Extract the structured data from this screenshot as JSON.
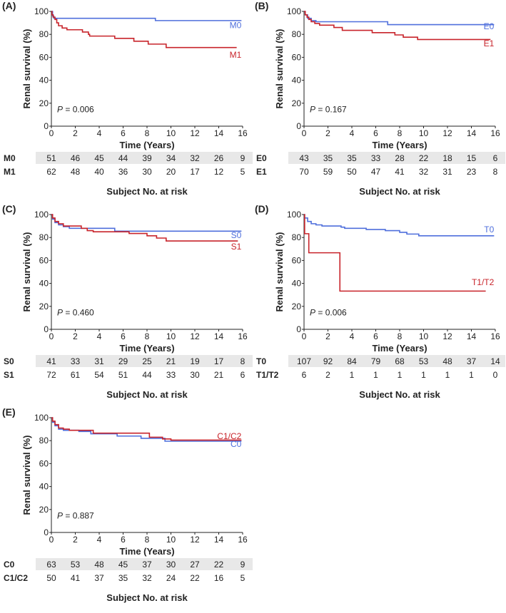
{
  "colors": {
    "blue": "#4f6fdc",
    "red": "#c8242b",
    "table_band": "#e8e8e8"
  },
  "chart_data": [
    {
      "type": "line",
      "panel_label": "(A)",
      "xlabel": "Time (Years)",
      "ylabel": "Renal survival (%)",
      "xlim": [
        0,
        16
      ],
      "ylim": [
        0,
        100
      ],
      "xticks": [
        0,
        2,
        4,
        6,
        8,
        10,
        12,
        14,
        16
      ],
      "yticks": [
        0,
        20,
        40,
        60,
        80,
        100
      ],
      "p_label": "P",
      "p_value": "= 0.006",
      "risk_title": "Subject No. at risk",
      "series": [
        {
          "name": "M0",
          "color": "blue",
          "steps": [
            [
              0,
              100
            ],
            [
              0.1,
              96
            ],
            [
              0.2,
              94
            ],
            [
              8.7,
              92
            ],
            [
              15.9,
              92
            ]
          ],
          "at_risk": [
            "51",
            "46",
            "45",
            "44",
            "39",
            "34",
            "32",
            "26",
            "9"
          ]
        },
        {
          "name": "M1",
          "color": "red",
          "steps": [
            [
              0,
              100
            ],
            [
              0.05,
              97
            ],
            [
              0.15,
              95
            ],
            [
              0.3,
              93
            ],
            [
              0.45,
              90
            ],
            [
              0.6,
              87.5
            ],
            [
              0.9,
              85.5
            ],
            [
              1.3,
              84
            ],
            [
              2.6,
              82
            ],
            [
              3.1,
              80
            ],
            [
              3.2,
              78.5
            ],
            [
              5.3,
              76.5
            ],
            [
              6.9,
              74
            ],
            [
              8.1,
              71.5
            ],
            [
              9.6,
              68.5
            ],
            [
              15.5,
              68.5
            ]
          ],
          "at_risk": [
            "62",
            "48",
            "40",
            "36",
            "30",
            "20",
            "17",
            "12",
            "5"
          ]
        }
      ]
    },
    {
      "type": "line",
      "panel_label": "(B)",
      "xlabel": "Time (Years)",
      "ylabel": "Renal survival (%)",
      "xlim": [
        0,
        16
      ],
      "ylim": [
        0,
        100
      ],
      "xticks": [
        0,
        2,
        4,
        6,
        8,
        10,
        12,
        14,
        16
      ],
      "yticks": [
        0,
        20,
        40,
        60,
        80,
        100
      ],
      "p_label": "P",
      "p_value": "= 0.167",
      "risk_title": "Subject No. at risk",
      "series": [
        {
          "name": "E0",
          "color": "blue",
          "steps": [
            [
              0,
              100
            ],
            [
              0.1,
              97
            ],
            [
              0.3,
              94
            ],
            [
              0.6,
              92
            ],
            [
              1,
              91
            ],
            [
              7,
              88.5
            ],
            [
              15.9,
              88.5
            ]
          ],
          "at_risk": [
            "43",
            "35",
            "35",
            "33",
            "28",
            "22",
            "18",
            "15",
            "6"
          ]
        },
        {
          "name": "E1",
          "color": "red",
          "steps": [
            [
              0,
              100
            ],
            [
              0.1,
              97
            ],
            [
              0.25,
              95
            ],
            [
              0.4,
              93
            ],
            [
              0.6,
              91
            ],
            [
              0.9,
              89.5
            ],
            [
              1.3,
              88
            ],
            [
              2.5,
              86
            ],
            [
              3.2,
              83.5
            ],
            [
              5.7,
              81.5
            ],
            [
              7.6,
              79.5
            ],
            [
              8.3,
              77.5
            ],
            [
              9.5,
              75.5
            ],
            [
              15.6,
              75.5
            ]
          ],
          "at_risk": [
            "70",
            "59",
            "50",
            "47",
            "41",
            "32",
            "31",
            "23",
            "8"
          ]
        }
      ]
    },
    {
      "type": "line",
      "panel_label": "(C)",
      "xlabel": "Time (Years)",
      "ylabel": "Renal survival (%)",
      "xlim": [
        0,
        16
      ],
      "ylim": [
        0,
        100
      ],
      "xticks": [
        0,
        2,
        4,
        6,
        8,
        10,
        12,
        14,
        16
      ],
      "yticks": [
        0,
        20,
        40,
        60,
        80,
        100
      ],
      "p_label": "P",
      "p_value": "= 0.460",
      "risk_title": "Subject No. at risk",
      "series": [
        {
          "name": "S0",
          "color": "blue",
          "steps": [
            [
              0,
              100
            ],
            [
              0.1,
              96
            ],
            [
              0.3,
              93
            ],
            [
              0.6,
              91
            ],
            [
              1,
              89.5
            ],
            [
              1.5,
              88
            ],
            [
              5.3,
              85.5
            ],
            [
              15.9,
              85.5
            ]
          ],
          "at_risk": [
            "41",
            "33",
            "31",
            "29",
            "25",
            "21",
            "19",
            "17",
            "8"
          ]
        },
        {
          "name": "S1",
          "color": "red",
          "steps": [
            [
              0,
              100
            ],
            [
              0.1,
              97
            ],
            [
              0.3,
              94
            ],
            [
              0.6,
              92
            ],
            [
              1,
              90
            ],
            [
              2.5,
              88
            ],
            [
              3,
              86
            ],
            [
              3.5,
              85
            ],
            [
              6.5,
              83.5
            ],
            [
              8,
              81.5
            ],
            [
              8.8,
              79.5
            ],
            [
              9.6,
              77
            ],
            [
              15.6,
              77
            ]
          ],
          "at_risk": [
            "72",
            "61",
            "54",
            "51",
            "44",
            "33",
            "30",
            "21",
            "6"
          ]
        }
      ]
    },
    {
      "type": "line",
      "panel_label": "(D)",
      "xlabel": "Time (Years)",
      "ylabel": "Renal survival (%)",
      "xlim": [
        0,
        16
      ],
      "ylim": [
        0,
        100
      ],
      "xticks": [
        0,
        2,
        4,
        6,
        8,
        10,
        12,
        14,
        16
      ],
      "yticks": [
        0,
        20,
        40,
        60,
        80,
        100
      ],
      "p_label": "P",
      "p_value": "= 0.006",
      "risk_title": "Subject No. at risk",
      "series": [
        {
          "name": "T0",
          "color": "blue",
          "steps": [
            [
              0,
              100
            ],
            [
              0.05,
              97
            ],
            [
              0.3,
              94
            ],
            [
              0.6,
              92
            ],
            [
              1,
              91
            ],
            [
              1.5,
              90
            ],
            [
              3.1,
              89
            ],
            [
              3.4,
              88
            ],
            [
              5.2,
              87
            ],
            [
              6.8,
              86
            ],
            [
              8,
              84.5
            ],
            [
              8.6,
              83
            ],
            [
              9.6,
              81.5
            ],
            [
              15.9,
              81.5
            ]
          ],
          "at_risk": [
            "107",
            "92",
            "84",
            "79",
            "68",
            "53",
            "48",
            "37",
            "14"
          ]
        },
        {
          "name": "T1/T2",
          "color": "red",
          "steps": [
            [
              0,
              100
            ],
            [
              0.05,
              83.3
            ],
            [
              0.4,
              66.7
            ],
            [
              3,
              33.3
            ],
            [
              15.2,
              33.3
            ]
          ],
          "at_risk": [
            "6",
            "2",
            "1",
            "1",
            "1",
            "1",
            "1",
            "1",
            "0"
          ]
        }
      ]
    },
    {
      "type": "line",
      "panel_label": "(E)",
      "xlabel": "Time (Years)",
      "ylabel": "Renal survival (%)",
      "xlim": [
        0,
        16
      ],
      "ylim": [
        0,
        100
      ],
      "xticks": [
        0,
        2,
        4,
        6,
        8,
        10,
        12,
        14,
        16
      ],
      "yticks": [
        0,
        20,
        40,
        60,
        80,
        100
      ],
      "p_label": "P",
      "p_value": "= 0.887",
      "risk_title": "Subject No. at risk",
      "series": [
        {
          "name": "C0",
          "color": "blue",
          "steps": [
            [
              0,
              100
            ],
            [
              0.1,
              96
            ],
            [
              0.3,
              93
            ],
            [
              0.6,
              90
            ],
            [
              1,
              89
            ],
            [
              2.3,
              88
            ],
            [
              3.3,
              86
            ],
            [
              5.5,
              84
            ],
            [
              7.5,
              82
            ],
            [
              9.5,
              79.5
            ],
            [
              15.9,
              79.5
            ]
          ],
          "at_risk": [
            "63",
            "53",
            "48",
            "45",
            "37",
            "30",
            "27",
            "22",
            "9"
          ]
        },
        {
          "name": "C1/C2",
          "color": "red",
          "steps": [
            [
              0,
              100
            ],
            [
              0.1,
              97
            ],
            [
              0.3,
              94
            ],
            [
              0.6,
              91
            ],
            [
              1,
              90
            ],
            [
              1.5,
              89
            ],
            [
              3.5,
              86.5
            ],
            [
              8.2,
              83
            ],
            [
              9.3,
              81.5
            ],
            [
              10,
              80.5
            ],
            [
              15.9,
              80.5
            ]
          ],
          "at_risk": [
            "50",
            "41",
            "37",
            "35",
            "32",
            "24",
            "22",
            "16",
            "5"
          ]
        }
      ]
    }
  ]
}
